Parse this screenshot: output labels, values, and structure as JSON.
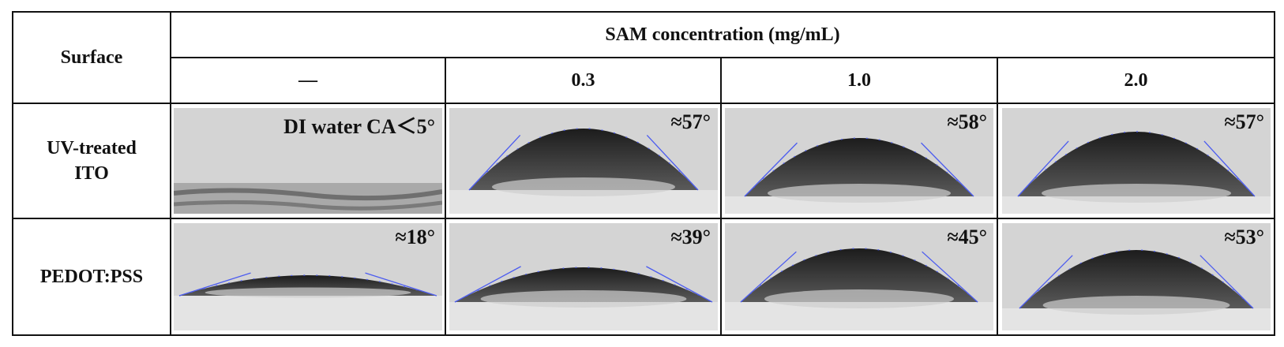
{
  "header": {
    "surface": "Surface",
    "group": "SAM concentration (mg/mL)",
    "columns": [
      "—",
      "0.3",
      "1.0",
      "2.0"
    ]
  },
  "rows": [
    {
      "label": "UV-treated ITO",
      "cells": [
        "DI water CA＜5°",
        "≈57°",
        "≈58°",
        "≈57°"
      ]
    },
    {
      "label": "PEDOT:PSS",
      "cells": [
        "≈18°",
        "≈39°",
        "≈45°",
        "≈53°"
      ]
    }
  ]
}
